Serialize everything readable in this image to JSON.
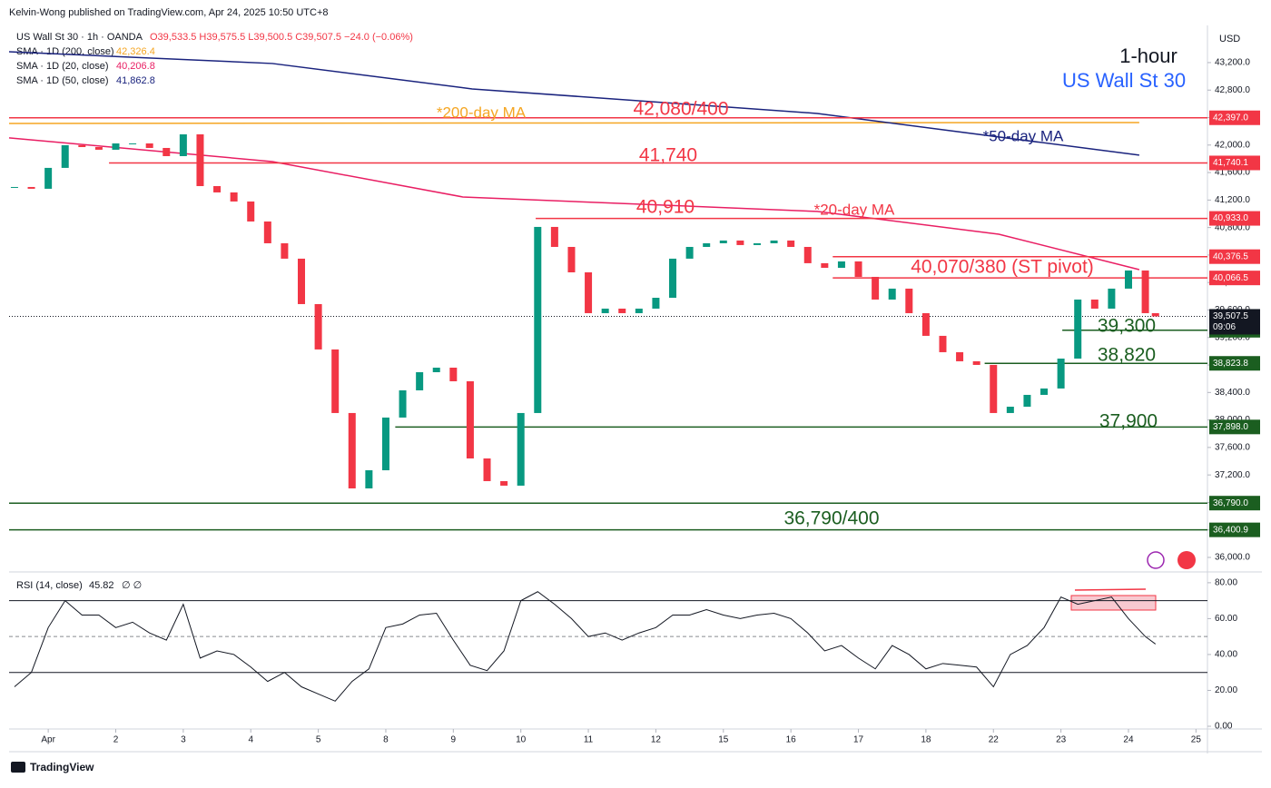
{
  "header": {
    "published": "Kelvin-Wong published on TradingView.com, Apr 24, 2025 10:50 UTC+8",
    "symbol": "US Wall St 30 · 1h · OANDA",
    "ohlc": "O39,533.5 H39,575.5 L39,500.5 C39,507.5 −24.0 (−0.06%)",
    "currency": "USD",
    "countdown": "09:06"
  },
  "footer": {
    "brand": "TradingView"
  },
  "chart_data": [
    {
      "type": "candlestick",
      "x": [
        -0.5,
        -0.25,
        0,
        0.25,
        0.5,
        0.75,
        1,
        1.25,
        1.5,
        1.75,
        2,
        2.25,
        2.5,
        2.75,
        3,
        3.25,
        3.5,
        3.75,
        4,
        4.25,
        4.5,
        4.75,
        5,
        5.25,
        5.5,
        5.75,
        6,
        6.25,
        6.5,
        6.75,
        7,
        7.25,
        7.5,
        7.75,
        8,
        8.25,
        8.5,
        8.75,
        9,
        9.25,
        9.5,
        9.75,
        10,
        10.25,
        10.5,
        10.75,
        11,
        11.25,
        11.5,
        11.75,
        12,
        12.25,
        12.5,
        12.75,
        13,
        13.25,
        13.5,
        13.75,
        14,
        14.25,
        14.5,
        14.75,
        15,
        15.25,
        15.5,
        15.75,
        16,
        16.25,
        16.4
      ],
      "series": [
        {
          "name": "US Wall St 30",
          "up_color": "#089981",
          "down_color": "#f23645",
          "values": [
            41390,
            41364,
            41668,
            41998,
            41971,
            41932,
            42024,
            42024,
            41958,
            41839,
            42156,
            41403,
            41311,
            41179,
            40888,
            40571,
            40347,
            39686,
            39026,
            38101,
            37004,
            37268,
            38035,
            38431,
            38695,
            38761,
            38563,
            37440,
            37110,
            37044,
            38101,
            40809,
            40518,
            40148,
            39554,
            39620,
            39554,
            39620,
            39778,
            40347,
            40518,
            40571,
            40611,
            40545,
            40571,
            40611,
            40518,
            40281,
            40214,
            40307,
            40082,
            39752,
            39911,
            39554,
            39224,
            38986,
            38854,
            38801,
            38101,
            38193,
            38365,
            38458,
            38893,
            39752,
            39620,
            39911,
            40175,
            39554,
            39507.5
          ]
        }
      ],
      "current_price": {
        "value": 39507.5,
        "label": "39,507.5"
      },
      "indicators": [
        {
          "name": "SMA · 1D (200, close)",
          "last": "42,326.4",
          "color": "#f5a623",
          "x": [
            -0.58,
            16.16
          ],
          "values": [
            42315,
            42328
          ]
        },
        {
          "name": "SMA · 1D (20, close)",
          "last": "40,206.8",
          "color": "#e91e63",
          "x": [
            -0.58,
            3.32,
            6.14,
            11.39,
            14.08,
            16.16
          ],
          "values": [
            42104,
            41760,
            41245,
            41034,
            40703,
            40188
          ]
        },
        {
          "name": "SMA · 1D (50, close)",
          "last": "41,862.8",
          "color": "#1a237e",
          "x": [
            -0.58,
            3.32,
            6.28,
            11.39,
            16.16
          ],
          "values": [
            43358,
            43187,
            42817,
            42460,
            41853
          ]
        }
      ],
      "levels": [
        {
          "value": 42397.0,
          "label": "42,397.0",
          "color": "#f23645",
          "from": -0.58
        },
        {
          "value": 41740.1,
          "label": "41,740.1",
          "color": "#f23645",
          "from": 0.9
        },
        {
          "value": 40933.0,
          "label": "40,933.0",
          "color": "#f23645",
          "from": 7.22
        },
        {
          "value": 40376.5,
          "label": "40,376.5",
          "color": "#f23645",
          "from": 11.62
        },
        {
          "value": 40066.5,
          "label": "40,066.5",
          "color": "#f23645",
          "from": 11.62
        },
        {
          "value": 39305.0,
          "label": "39,305.0",
          "color": "#1b5e20",
          "from": 15.02
        },
        {
          "value": 38823.8,
          "label": "38,823.8",
          "color": "#1b5e20",
          "from": 13.87
        },
        {
          "value": 37898.0,
          "label": "37,898.0",
          "color": "#1b5e20",
          "from": 5.14
        },
        {
          "value": 36790.0,
          "label": "36,790.0",
          "color": "#1b5e20",
          "from": -0.58
        },
        {
          "value": 36400.9,
          "label": "36,400.9",
          "color": "#1b5e20",
          "from": -0.58
        }
      ],
      "annotations": [
        {
          "text": "*200-day MA",
          "color": "#f5a623"
        },
        {
          "text": "42,080/400",
          "color": "#f23645"
        },
        {
          "text": "*50-day MA",
          "color": "#1a237e"
        },
        {
          "text": "41,740",
          "color": "#f23645"
        },
        {
          "text": "40,910",
          "color": "#f23645"
        },
        {
          "text": "*20-day MA",
          "color": "#f23645"
        },
        {
          "text": "40,070/380 (ST pivot)",
          "color": "#f23645"
        },
        {
          "text": "39,300",
          "color": "#1b5e20"
        },
        {
          "text": "38,820",
          "color": "#1b5e20"
        },
        {
          "text": "37,900",
          "color": "#1b5e20"
        },
        {
          "text": "36,790/400",
          "color": "#1b5e20"
        },
        {
          "text": "1-hour",
          "color": "#131722"
        },
        {
          "text": "US Wall St 30",
          "color": "#2962ff"
        }
      ],
      "xlim": [
        -0.58,
        17.17
      ],
      "xticks": [
        {
          "value": 0,
          "label": "Apr"
        },
        {
          "value": 1,
          "label": "2"
        },
        {
          "value": 2,
          "label": "3"
        },
        {
          "value": 3,
          "label": "4"
        },
        {
          "value": 4,
          "label": "5"
        },
        {
          "value": 5,
          "label": "8"
        },
        {
          "value": 6,
          "label": "9"
        },
        {
          "value": 7,
          "label": "10"
        },
        {
          "value": 8,
          "label": "11"
        },
        {
          "value": 9,
          "label": "12"
        },
        {
          "value": 10,
          "label": "15"
        },
        {
          "value": 11,
          "label": "16"
        },
        {
          "value": 12,
          "label": "17"
        },
        {
          "value": 13,
          "label": "18"
        },
        {
          "value": 14,
          "label": "22"
        },
        {
          "value": 15,
          "label": "23"
        },
        {
          "value": 16,
          "label": "24"
        },
        {
          "value": 17,
          "label": "25"
        }
      ],
      "ylim": [
        35815,
        43741
      ],
      "yticks": [
        {
          "value": 36000,
          "label": "36,000.0"
        },
        {
          "value": 36400,
          "label": "36,400.0"
        },
        {
          "value": 36800,
          "label": "36,800.0"
        },
        {
          "value": 37200,
          "label": "37,200.0"
        },
        {
          "value": 37600,
          "label": "37,600.0"
        },
        {
          "value": 38000,
          "label": "38,000.0"
        },
        {
          "value": 38400,
          "label": "38,400.0"
        },
        {
          "value": 38800,
          "label": "38,800.0"
        },
        {
          "value": 39200,
          "label": "39,200.0"
        },
        {
          "value": 39600,
          "label": "39,600.0"
        },
        {
          "value": 40000,
          "label": "40,000.0"
        },
        {
          "value": 40400,
          "label": "40,400.0"
        },
        {
          "value": 40800,
          "label": "40,800.0"
        },
        {
          "value": 41200,
          "label": "41,200.0"
        },
        {
          "value": 41600,
          "label": "41,600.0"
        },
        {
          "value": 42000,
          "label": "42,000.0"
        },
        {
          "value": 42400,
          "label": "42,400.0"
        },
        {
          "value": 42800,
          "label": "42,800.0"
        },
        {
          "value": 43200,
          "label": "43,200.0"
        }
      ]
    },
    {
      "type": "line",
      "title": "RSI (14, close)",
      "last": "45.82",
      "extra": "∅ ∅",
      "x": [
        -0.5,
        -0.25,
        0,
        0.25,
        0.5,
        0.75,
        1,
        1.25,
        1.5,
        1.75,
        2,
        2.25,
        2.5,
        2.75,
        3,
        3.25,
        3.5,
        3.75,
        4,
        4.25,
        4.5,
        4.75,
        5,
        5.25,
        5.5,
        5.75,
        6,
        6.25,
        6.5,
        6.75,
        7,
        7.25,
        7.5,
        7.75,
        8,
        8.25,
        8.5,
        8.75,
        9,
        9.25,
        9.5,
        9.75,
        10,
        10.25,
        10.5,
        10.75,
        11,
        11.25,
        11.5,
        11.75,
        12,
        12.25,
        12.5,
        12.75,
        13,
        13.25,
        13.5,
        13.75,
        14,
        14.25,
        14.5,
        14.75,
        15,
        15.25,
        15.5,
        15.75,
        16,
        16.25,
        16.4
      ],
      "series": [
        {
          "name": "RSI",
          "color": "#131722",
          "values": [
            22,
            30,
            55,
            70,
            62,
            62,
            55,
            58,
            52,
            48,
            68,
            38,
            42,
            40,
            33,
            25,
            30,
            22,
            18,
            14,
            25,
            32,
            55,
            57,
            62,
            63,
            48,
            34,
            31,
            42,
            70,
            75,
            68,
            60,
            50,
            52,
            48,
            52,
            55,
            62,
            62,
            65,
            62,
            60,
            62,
            63,
            60,
            52,
            42,
            45,
            38,
            32,
            45,
            40,
            32,
            35,
            34,
            33,
            22,
            40,
            45,
            55,
            72,
            68,
            70,
            72,
            60,
            50,
            45.82
          ]
        }
      ],
      "bands": [
        70,
        50,
        30
      ],
      "xlim": [
        -0.58,
        17.17
      ],
      "ylim": [
        0,
        85
      ],
      "yticks": [
        {
          "value": 0,
          "label": "0.00"
        },
        {
          "value": 20,
          "label": "20.00"
        },
        {
          "value": 40,
          "label": "40.00"
        },
        {
          "value": 60,
          "label": "60.00"
        },
        {
          "value": 80,
          "label": "80.00"
        }
      ]
    }
  ]
}
